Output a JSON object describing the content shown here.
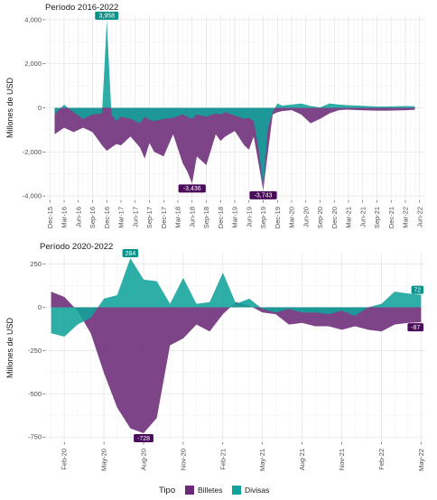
{
  "colors": {
    "billetes": "#6b2a78",
    "divisas": "#10a39a",
    "billetes_label": "#4a0c5a",
    "divisas_label": "#0a918a"
  },
  "legend": {
    "title": "Tipo",
    "items": [
      "Billetes",
      "Divisas"
    ]
  },
  "chart_data": [
    {
      "type": "area",
      "title": "Período 2016-2022",
      "xlabel": "",
      "ylabel": "Millones de USD",
      "ylim": [
        -4200,
        4200
      ],
      "yticks": [
        4000,
        2000,
        0,
        -2000,
        -4000
      ],
      "ytick_labels": [
        "4,000",
        "2,000",
        "0",
        "-2,000",
        "-4,000"
      ],
      "xticks": [
        "2015-12",
        "2016-03",
        "2016-06",
        "2016-09",
        "2016-12",
        "2017-03",
        "2017-06",
        "2017-09",
        "2017-12",
        "2018-03",
        "2018-06",
        "2018-09",
        "2018-12",
        "2019-03",
        "2019-06",
        "2019-09",
        "2019-12",
        "2020-03",
        "2020-06",
        "2020-09",
        "2020-12",
        "2021-03",
        "2021-06",
        "2021-09",
        "2021-12",
        "2022-03",
        "2022-06"
      ],
      "xtick_labels": [
        "Dec-15",
        "Mar-16",
        "Jun-16",
        "Sep-16",
        "Dec-16",
        "Mar-17",
        "Jun-17",
        "Sep-17",
        "Dec-17",
        "Mar-18",
        "Jun-18",
        "Sep-18",
        "Dec-18",
        "Mar-19",
        "Jun-19",
        "Sep-19",
        "Dec-19",
        "Mar-20",
        "Jun-20",
        "Sep-20",
        "Dec-20",
        "Mar-21",
        "Jun-21",
        "Sep-21",
        "Dec-21",
        "Mar-22",
        "Jun-22"
      ],
      "grid": true,
      "series": [
        {
          "name": "Billetes",
          "x": [
            "2016-01",
            "2016-03",
            "2016-05",
            "2016-07",
            "2016-09",
            "2016-11",
            "2016-12",
            "2017-01",
            "2017-02",
            "2017-03",
            "2017-05",
            "2017-07",
            "2017-08",
            "2017-09",
            "2017-10",
            "2017-12",
            "2018-02",
            "2018-04",
            "2018-05",
            "2018-06",
            "2018-07",
            "2018-09",
            "2018-11",
            "2018-12",
            "2019-01",
            "2019-03",
            "2019-05",
            "2019-06",
            "2019-07",
            "2019-08",
            "2019-09",
            "2019-10",
            "2019-11",
            "2019-12",
            "2020-01",
            "2020-03",
            "2020-05",
            "2020-07",
            "2020-09",
            "2020-11",
            "2021-01",
            "2021-03",
            "2021-05",
            "2021-07",
            "2021-09",
            "2021-11",
            "2022-01",
            "2022-03",
            "2022-05"
          ],
          "values": [
            -1200,
            -900,
            -1100,
            -900,
            -1100,
            -1700,
            -1950,
            -1800,
            -1650,
            -1700,
            -1300,
            -1800,
            -2300,
            -1600,
            -2000,
            -2200,
            -1200,
            -2500,
            -2900,
            -3436,
            -2200,
            -2600,
            -1200,
            -1500,
            -1300,
            -1050,
            -1700,
            -1900,
            -1300,
            -2500,
            -3743,
            -2000,
            -300,
            -200,
            -150,
            -100,
            -300,
            -700,
            -500,
            -250,
            -100,
            -80,
            -100,
            -120,
            -130,
            -130,
            -120,
            -110,
            -87
          ]
        },
        {
          "name": "Divisas",
          "x": [
            "2016-01",
            "2016-03",
            "2016-05",
            "2016-07",
            "2016-09",
            "2016-11",
            "2016-12",
            "2017-01",
            "2017-02",
            "2017-03",
            "2017-05",
            "2017-07",
            "2017-08",
            "2017-09",
            "2017-10",
            "2017-12",
            "2018-02",
            "2018-04",
            "2018-05",
            "2018-06",
            "2018-07",
            "2018-09",
            "2018-11",
            "2018-12",
            "2019-01",
            "2019-03",
            "2019-05",
            "2019-06",
            "2019-07",
            "2019-08",
            "2019-09",
            "2019-10",
            "2019-11",
            "2019-12",
            "2020-01",
            "2020-03",
            "2020-05",
            "2020-07",
            "2020-09",
            "2020-11",
            "2021-01",
            "2021-03",
            "2021-05",
            "2021-07",
            "2021-09",
            "2021-11",
            "2022-01",
            "2022-03",
            "2022-05"
          ],
          "values": [
            -300,
            150,
            -200,
            -500,
            -300,
            -250,
            3958,
            -300,
            -600,
            -400,
            -500,
            -700,
            -400,
            -550,
            -600,
            -500,
            -450,
            -300,
            -400,
            -500,
            -300,
            -400,
            -250,
            -300,
            -200,
            -350,
            -500,
            -450,
            -600,
            -1800,
            -3600,
            -900,
            -200,
            200,
            100,
            150,
            200,
            80,
            20,
            200,
            150,
            120,
            100,
            80,
            60,
            60,
            70,
            80,
            72
          ]
        }
      ],
      "annotations": [
        {
          "x": "2016-12",
          "y": 3958,
          "text": "3,958",
          "series": "Divisas"
        },
        {
          "x": "2018-06",
          "y": -3436,
          "text": "-3,436",
          "series": "Billetes"
        },
        {
          "x": "2019-09",
          "y": -3743,
          "text": "-3,743",
          "series": "Billetes"
        }
      ]
    },
    {
      "type": "area",
      "title": "Período 2020-2022",
      "xlabel": "",
      "ylabel": "Millones de USD",
      "ylim": [
        -780,
        310
      ],
      "yticks": [
        250,
        0,
        -250,
        -500,
        -750
      ],
      "ytick_labels": [
        "250",
        "0",
        "-250",
        "-500",
        "-750"
      ],
      "xticks": [
        "2020-02",
        "2020-05",
        "2020-08",
        "2020-11",
        "2021-02",
        "2021-05",
        "2021-08",
        "2021-11",
        "2022-02",
        "2022-05"
      ],
      "xtick_labels": [
        "Feb-20",
        "May-20",
        "Aug-20",
        "Nov-20",
        "Feb-21",
        "May-21",
        "Aug-21",
        "Nov-21",
        "Feb-22",
        "May-22"
      ],
      "grid": true,
      "series": [
        {
          "name": "Billetes",
          "x": [
            "2020-01",
            "2020-02",
            "2020-03",
            "2020-04",
            "2020-05",
            "2020-06",
            "2020-07",
            "2020-08",
            "2020-09",
            "2020-10",
            "2020-11",
            "2020-12",
            "2021-01",
            "2021-02",
            "2021-03",
            "2021-04",
            "2021-05",
            "2021-06",
            "2021-07",
            "2021-08",
            "2021-09",
            "2021-10",
            "2021-11",
            "2021-12",
            "2022-01",
            "2022-02",
            "2022-03",
            "2022-04",
            "2022-05"
          ],
          "values": [
            90,
            60,
            -20,
            -150,
            -380,
            -580,
            -700,
            -728,
            -640,
            -220,
            -180,
            -100,
            -140,
            -40,
            30,
            10,
            -30,
            -40,
            -100,
            -90,
            -110,
            -110,
            -130,
            -110,
            -130,
            -140,
            -100,
            -90,
            -87
          ]
        },
        {
          "name": "Divisas",
          "x": [
            "2020-01",
            "2020-02",
            "2020-03",
            "2020-04",
            "2020-05",
            "2020-06",
            "2020-07",
            "2020-08",
            "2020-09",
            "2020-10",
            "2020-11",
            "2020-12",
            "2021-01",
            "2021-02",
            "2021-03",
            "2021-04",
            "2021-05",
            "2021-06",
            "2021-07",
            "2021-08",
            "2021-09",
            "2021-10",
            "2021-11",
            "2021-12",
            "2022-01",
            "2022-02",
            "2022-03",
            "2022-04",
            "2022-05"
          ],
          "values": [
            -150,
            -170,
            -100,
            -60,
            50,
            70,
            284,
            160,
            150,
            20,
            170,
            20,
            30,
            200,
            20,
            50,
            -10,
            -30,
            -10,
            -30,
            -30,
            -40,
            -20,
            -50,
            0,
            20,
            90,
            80,
            72
          ]
        }
      ],
      "annotations": [
        {
          "x": "2020-07",
          "y": 284,
          "text": "284",
          "series": "Divisas"
        },
        {
          "x": "2020-08",
          "y": -728,
          "text": "-728",
          "series": "Billetes"
        },
        {
          "x": "2022-05",
          "y": 72,
          "text": "72",
          "series": "Divisas"
        },
        {
          "x": "2022-05",
          "y": -87,
          "text": "-87",
          "series": "Billetes"
        }
      ]
    }
  ]
}
